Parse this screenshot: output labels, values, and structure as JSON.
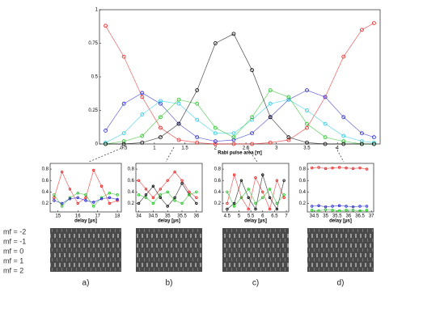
{
  "chart_data": [
    {
      "type": "scatter",
      "xlabel": "Rabi pulse area [π]",
      "xlim": [
        0.1,
        4.7
      ],
      "ylim": [
        0,
        1
      ],
      "xticks": [
        0.5,
        1,
        1.5,
        2,
        2.5,
        3,
        3.5,
        4
      ],
      "yticks": [
        0,
        0.25,
        0.5,
        0.75,
        1
      ],
      "x": [
        0.2,
        0.5,
        0.8,
        1.1,
        1.4,
        1.7,
        2.0,
        2.3,
        2.6,
        2.9,
        3.2,
        3.5,
        3.8,
        4.1,
        4.4,
        4.6
      ],
      "series": [
        {
          "color": "#e8201e",
          "values": [
            0.88,
            0.65,
            0.35,
            0.12,
            0.03,
            0.01,
            0.0,
            0.0,
            0.0,
            0.01,
            0.03,
            0.12,
            0.35,
            0.65,
            0.85,
            0.9
          ]
        },
        {
          "color": "#2020d0",
          "values": [
            0.1,
            0.3,
            0.38,
            0.3,
            0.15,
            0.05,
            0.02,
            0.03,
            0.08,
            0.2,
            0.33,
            0.4,
            0.35,
            0.2,
            0.08,
            0.05
          ]
        },
        {
          "color": "#20c8e0",
          "values": [
            0.01,
            0.08,
            0.22,
            0.32,
            0.3,
            0.18,
            0.08,
            0.08,
            0.18,
            0.3,
            0.33,
            0.25,
            0.15,
            0.06,
            0.02,
            0.01
          ]
        },
        {
          "color": "#20c020",
          "values": [
            0.0,
            0.02,
            0.06,
            0.2,
            0.33,
            0.3,
            0.12,
            0.05,
            0.2,
            0.4,
            0.35,
            0.15,
            0.05,
            0.02,
            0.0,
            0.0
          ]
        },
        {
          "color": "#000000",
          "values": [
            0.0,
            0.0,
            0.01,
            0.05,
            0.15,
            0.4,
            0.75,
            0.82,
            0.55,
            0.2,
            0.05,
            0.01,
            0.0,
            0.0,
            0.0,
            0.0
          ]
        }
      ]
    },
    {
      "type": "scatter",
      "panel_label": "a)",
      "xlabel": "delay [µs]",
      "xlim": [
        14.6,
        18.2
      ],
      "ylim": [
        0.05,
        0.9
      ],
      "xticks": [
        15,
        16,
        17,
        18
      ],
      "yticks": [
        0.2,
        0.4,
        0.6,
        0.8
      ],
      "x": [
        14.8,
        15.2,
        15.6,
        16.0,
        16.4,
        16.8,
        17.2,
        17.6,
        18.0
      ],
      "series": [
        {
          "color": "#e8201e",
          "values": [
            0.3,
            0.75,
            0.45,
            0.2,
            0.3,
            0.78,
            0.5,
            0.2,
            0.25
          ]
        },
        {
          "color": "#20c020",
          "values": [
            0.35,
            0.15,
            0.3,
            0.38,
            0.35,
            0.15,
            0.3,
            0.38,
            0.35
          ]
        },
        {
          "color": "#2020d0",
          "values": [
            0.25,
            0.2,
            0.28,
            0.3,
            0.25,
            0.22,
            0.28,
            0.3,
            0.27
          ]
        }
      ]
    },
    {
      "type": "scatter",
      "panel_label": "b)",
      "xlabel": "delay [µs]",
      "xlim": [
        33.9,
        36.2
      ],
      "ylim": [
        0.05,
        0.9
      ],
      "xticks": [
        34,
        34.5,
        35,
        35.5,
        36
      ],
      "yticks": [
        0.2,
        0.4,
        0.6,
        0.8
      ],
      "x": [
        34.0,
        34.25,
        34.5,
        34.75,
        35.0,
        35.25,
        35.5,
        35.75,
        36.0
      ],
      "series": [
        {
          "color": "#e8201e",
          "values": [
            0.6,
            0.45,
            0.3,
            0.45,
            0.6,
            0.75,
            0.6,
            0.4,
            0.3
          ]
        },
        {
          "color": "#000000",
          "values": [
            0.2,
            0.35,
            0.5,
            0.3,
            0.15,
            0.3,
            0.55,
            0.35,
            0.2
          ]
        },
        {
          "color": "#20c020",
          "values": [
            0.35,
            0.3,
            0.2,
            0.35,
            0.4,
            0.25,
            0.2,
            0.35,
            0.4
          ]
        }
      ]
    },
    {
      "type": "scatter",
      "panel_label": "c)",
      "xlabel": "delay [µs]",
      "xlim": [
        4.3,
        7.1
      ],
      "ylim": [
        0.05,
        0.9
      ],
      "xticks": [
        4.5,
        5,
        5.5,
        6,
        6.5,
        7
      ],
      "yticks": [
        0.2,
        0.4,
        0.6,
        0.8
      ],
      "x": [
        4.5,
        4.8,
        5.1,
        5.4,
        5.7,
        6.0,
        6.3,
        6.6,
        6.9
      ],
      "series": [
        {
          "color": "#e8201e",
          "values": [
            0.2,
            0.7,
            0.3,
            0.1,
            0.65,
            0.4,
            0.1,
            0.6,
            0.3
          ]
        },
        {
          "color": "#000000",
          "values": [
            0.1,
            0.2,
            0.6,
            0.3,
            0.1,
            0.7,
            0.3,
            0.1,
            0.6
          ]
        },
        {
          "color": "#20c020",
          "values": [
            0.4,
            0.15,
            0.3,
            0.45,
            0.2,
            0.3,
            0.45,
            0.2,
            0.35
          ]
        }
      ]
    },
    {
      "type": "scatter",
      "panel_label": "d)",
      "xlabel": "delay [µs]",
      "xlim": [
        34.2,
        37.1
      ],
      "ylim": [
        0.05,
        0.9
      ],
      "xticks": [
        34.5,
        35,
        35.5,
        36,
        36.5,
        37
      ],
      "yticks": [
        0.2,
        0.4,
        0.6,
        0.8
      ],
      "x": [
        34.4,
        34.7,
        35.0,
        35.3,
        35.6,
        35.9,
        36.2,
        36.5,
        36.8
      ],
      "series": [
        {
          "color": "#e8201e",
          "values": [
            0.82,
            0.83,
            0.81,
            0.82,
            0.83,
            0.82,
            0.81,
            0.82,
            0.8
          ]
        },
        {
          "color": "#2020d0",
          "values": [
            0.15,
            0.16,
            0.14,
            0.15,
            0.16,
            0.15,
            0.14,
            0.15,
            0.15
          ]
        },
        {
          "color": "#20c020",
          "values": [
            0.08,
            0.07,
            0.09,
            0.08,
            0.07,
            0.08,
            0.08,
            0.07,
            0.08
          ]
        }
      ]
    }
  ],
  "row_labels": [
    "mf = -2",
    "mf = -1",
    "mf = 0",
    "mf = 1",
    "mf = 2"
  ]
}
